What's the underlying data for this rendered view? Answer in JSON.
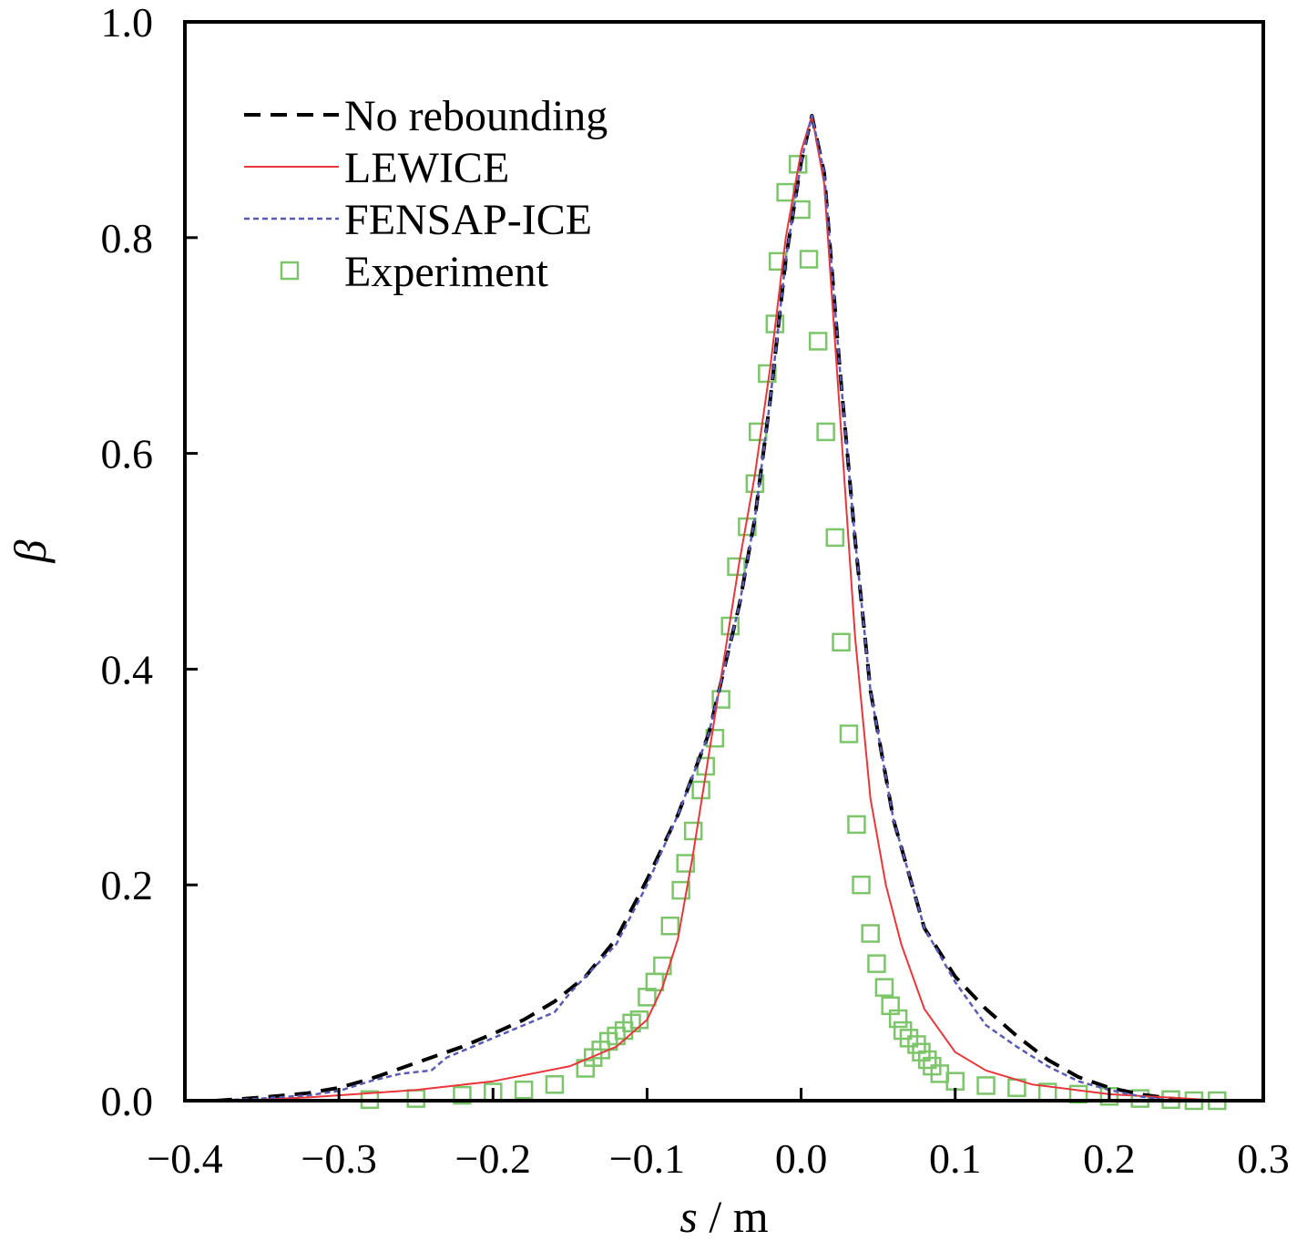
{
  "chart_data": {
    "type": "line",
    "title": "",
    "xlabel": {
      "symbol": "s",
      "unit": " / m"
    },
    "ylabel": "β",
    "xlim": [
      -0.4,
      0.3
    ],
    "ylim": [
      0.0,
      1.0
    ],
    "xticks": [
      -0.4,
      -0.3,
      -0.2,
      -0.1,
      0.0,
      0.1,
      0.2,
      0.3
    ],
    "xtick_labels": [
      "−0.4",
      "−0.3",
      "−0.2",
      "−0.1",
      "0.0",
      "0.1",
      "0.2",
      "0.3"
    ],
    "yticks": [
      0.0,
      0.2,
      0.4,
      0.6,
      0.8,
      1.0
    ],
    "ytick_labels": [
      "0.0",
      "0.2",
      "0.4",
      "0.6",
      "0.8",
      "1.0"
    ],
    "grid": false,
    "legend_position": "top-left",
    "series": [
      {
        "name": "No rebounding",
        "style": "dashed",
        "color": "#000000",
        "points": [
          [
            -0.38,
            0.0
          ],
          [
            -0.35,
            0.003
          ],
          [
            -0.32,
            0.007
          ],
          [
            -0.3,
            0.012
          ],
          [
            -0.28,
            0.02
          ],
          [
            -0.26,
            0.03
          ],
          [
            -0.24,
            0.04
          ],
          [
            -0.22,
            0.05
          ],
          [
            -0.2,
            0.062
          ],
          [
            -0.18,
            0.075
          ],
          [
            -0.16,
            0.092
          ],
          [
            -0.14,
            0.115
          ],
          [
            -0.12,
            0.15
          ],
          [
            -0.1,
            0.205
          ],
          [
            -0.08,
            0.265
          ],
          [
            -0.06,
            0.34
          ],
          [
            -0.04,
            0.46
          ],
          [
            -0.03,
            0.54
          ],
          [
            -0.02,
            0.65
          ],
          [
            -0.01,
            0.78
          ],
          [
            0.0,
            0.87
          ],
          [
            0.007,
            0.913
          ],
          [
            0.015,
            0.86
          ],
          [
            0.025,
            0.68
          ],
          [
            0.035,
            0.52
          ],
          [
            0.045,
            0.38
          ],
          [
            0.06,
            0.26
          ],
          [
            0.08,
            0.16
          ],
          [
            0.1,
            0.115
          ],
          [
            0.12,
            0.085
          ],
          [
            0.14,
            0.06
          ],
          [
            0.16,
            0.038
          ],
          [
            0.18,
            0.022
          ],
          [
            0.2,
            0.012
          ],
          [
            0.22,
            0.006
          ],
          [
            0.24,
            0.002
          ],
          [
            0.26,
            0.0
          ]
        ]
      },
      {
        "name": "LEWICE",
        "style": "solid",
        "color": "#e8363a",
        "points": [
          [
            -0.38,
            0.0
          ],
          [
            -0.35,
            0.001
          ],
          [
            -0.32,
            0.003
          ],
          [
            -0.3,
            0.005
          ],
          [
            -0.25,
            0.01
          ],
          [
            -0.2,
            0.018
          ],
          [
            -0.15,
            0.032
          ],
          [
            -0.12,
            0.05
          ],
          [
            -0.1,
            0.075
          ],
          [
            -0.09,
            0.105
          ],
          [
            -0.08,
            0.15
          ],
          [
            -0.07,
            0.23
          ],
          [
            -0.06,
            0.32
          ],
          [
            -0.05,
            0.41
          ],
          [
            -0.04,
            0.5
          ],
          [
            -0.03,
            0.58
          ],
          [
            -0.02,
            0.68
          ],
          [
            -0.01,
            0.8
          ],
          [
            0.0,
            0.88
          ],
          [
            0.007,
            0.913
          ],
          [
            0.015,
            0.85
          ],
          [
            0.025,
            0.64
          ],
          [
            0.035,
            0.43
          ],
          [
            0.045,
            0.28
          ],
          [
            0.055,
            0.2
          ],
          [
            0.065,
            0.145
          ],
          [
            0.08,
            0.085
          ],
          [
            0.1,
            0.045
          ],
          [
            0.12,
            0.028
          ],
          [
            0.15,
            0.015
          ],
          [
            0.2,
            0.006
          ],
          [
            0.25,
            0.002
          ],
          [
            0.27,
            0.0
          ]
        ]
      },
      {
        "name": "FENSAP-ICE",
        "style": "dotted",
        "color": "#5a5ab4",
        "points": [
          [
            -0.38,
            0.0
          ],
          [
            -0.35,
            0.002
          ],
          [
            -0.32,
            0.005
          ],
          [
            -0.3,
            0.009
          ],
          [
            -0.28,
            0.018
          ],
          [
            -0.26,
            0.025
          ],
          [
            -0.24,
            0.028
          ],
          [
            -0.23,
            0.04
          ],
          [
            -0.22,
            0.046
          ],
          [
            -0.2,
            0.058
          ],
          [
            -0.18,
            0.07
          ],
          [
            -0.16,
            0.082
          ],
          [
            -0.15,
            0.1
          ],
          [
            -0.12,
            0.145
          ],
          [
            -0.1,
            0.2
          ],
          [
            -0.08,
            0.265
          ],
          [
            -0.06,
            0.34
          ],
          [
            -0.04,
            0.46
          ],
          [
            -0.03,
            0.54
          ],
          [
            -0.02,
            0.65
          ],
          [
            -0.01,
            0.78
          ],
          [
            0.0,
            0.87
          ],
          [
            0.007,
            0.913
          ],
          [
            0.015,
            0.86
          ],
          [
            0.025,
            0.68
          ],
          [
            0.035,
            0.52
          ],
          [
            0.045,
            0.38
          ],
          [
            0.06,
            0.26
          ],
          [
            0.08,
            0.16
          ],
          [
            0.1,
            0.11
          ],
          [
            0.12,
            0.07
          ],
          [
            0.14,
            0.05
          ],
          [
            0.16,
            0.032
          ],
          [
            0.18,
            0.018
          ],
          [
            0.2,
            0.01
          ],
          [
            0.22,
            0.004
          ],
          [
            0.24,
            0.0
          ]
        ]
      },
      {
        "name": "Experiment",
        "style": "markers",
        "marker": "square",
        "color": "#7cc56a",
        "points": [
          [
            -0.002,
            0.868
          ],
          [
            -0.01,
            0.842
          ],
          [
            0.0,
            0.826
          ],
          [
            0.005,
            0.78
          ],
          [
            -0.015,
            0.778
          ],
          [
            -0.017,
            0.72
          ],
          [
            0.011,
            0.704
          ],
          [
            -0.022,
            0.674
          ],
          [
            -0.028,
            0.62
          ],
          [
            0.016,
            0.62
          ],
          [
            -0.03,
            0.572
          ],
          [
            -0.035,
            0.532
          ],
          [
            0.022,
            0.522
          ],
          [
            -0.042,
            0.495
          ],
          [
            -0.046,
            0.44
          ],
          [
            0.026,
            0.425
          ],
          [
            -0.052,
            0.372
          ],
          [
            -0.056,
            0.336
          ],
          [
            0.031,
            0.34
          ],
          [
            -0.062,
            0.31
          ],
          [
            -0.065,
            0.288
          ],
          [
            0.036,
            0.256
          ],
          [
            -0.07,
            0.25
          ],
          [
            -0.075,
            0.22
          ],
          [
            -0.078,
            0.195
          ],
          [
            0.039,
            0.2
          ],
          [
            -0.085,
            0.162
          ],
          [
            0.045,
            0.155
          ],
          [
            -0.09,
            0.125
          ],
          [
            0.049,
            0.127
          ],
          [
            -0.095,
            0.11
          ],
          [
            0.054,
            0.105
          ],
          [
            -0.1,
            0.096
          ],
          [
            0.058,
            0.088
          ],
          [
            -0.105,
            0.075
          ],
          [
            0.063,
            0.076
          ],
          [
            -0.11,
            0.072
          ],
          [
            0.066,
            0.065
          ],
          [
            -0.115,
            0.065
          ],
          [
            0.07,
            0.058
          ],
          [
            -0.12,
            0.06
          ],
          [
            0.075,
            0.052
          ],
          [
            -0.125,
            0.055
          ],
          [
            0.078,
            0.045
          ],
          [
            -0.13,
            0.047
          ],
          [
            0.082,
            0.038
          ],
          [
            -0.135,
            0.04
          ],
          [
            0.085,
            0.032
          ],
          [
            -0.14,
            0.03
          ],
          [
            0.09,
            0.025
          ],
          [
            -0.16,
            0.015
          ],
          [
            0.1,
            0.018
          ],
          [
            -0.18,
            0.01
          ],
          [
            0.12,
            0.014
          ],
          [
            -0.2,
            0.008
          ],
          [
            0.14,
            0.012
          ],
          [
            -0.22,
            0.005
          ],
          [
            0.16,
            0.008
          ],
          [
            -0.25,
            0.002
          ],
          [
            0.18,
            0.006
          ],
          [
            -0.28,
            0.001
          ],
          [
            0.2,
            0.004
          ],
          [
            0.22,
            0.002
          ],
          [
            0.24,
            0.001
          ],
          [
            0.255,
            0.0
          ],
          [
            0.27,
            0.0
          ]
        ]
      }
    ]
  }
}
